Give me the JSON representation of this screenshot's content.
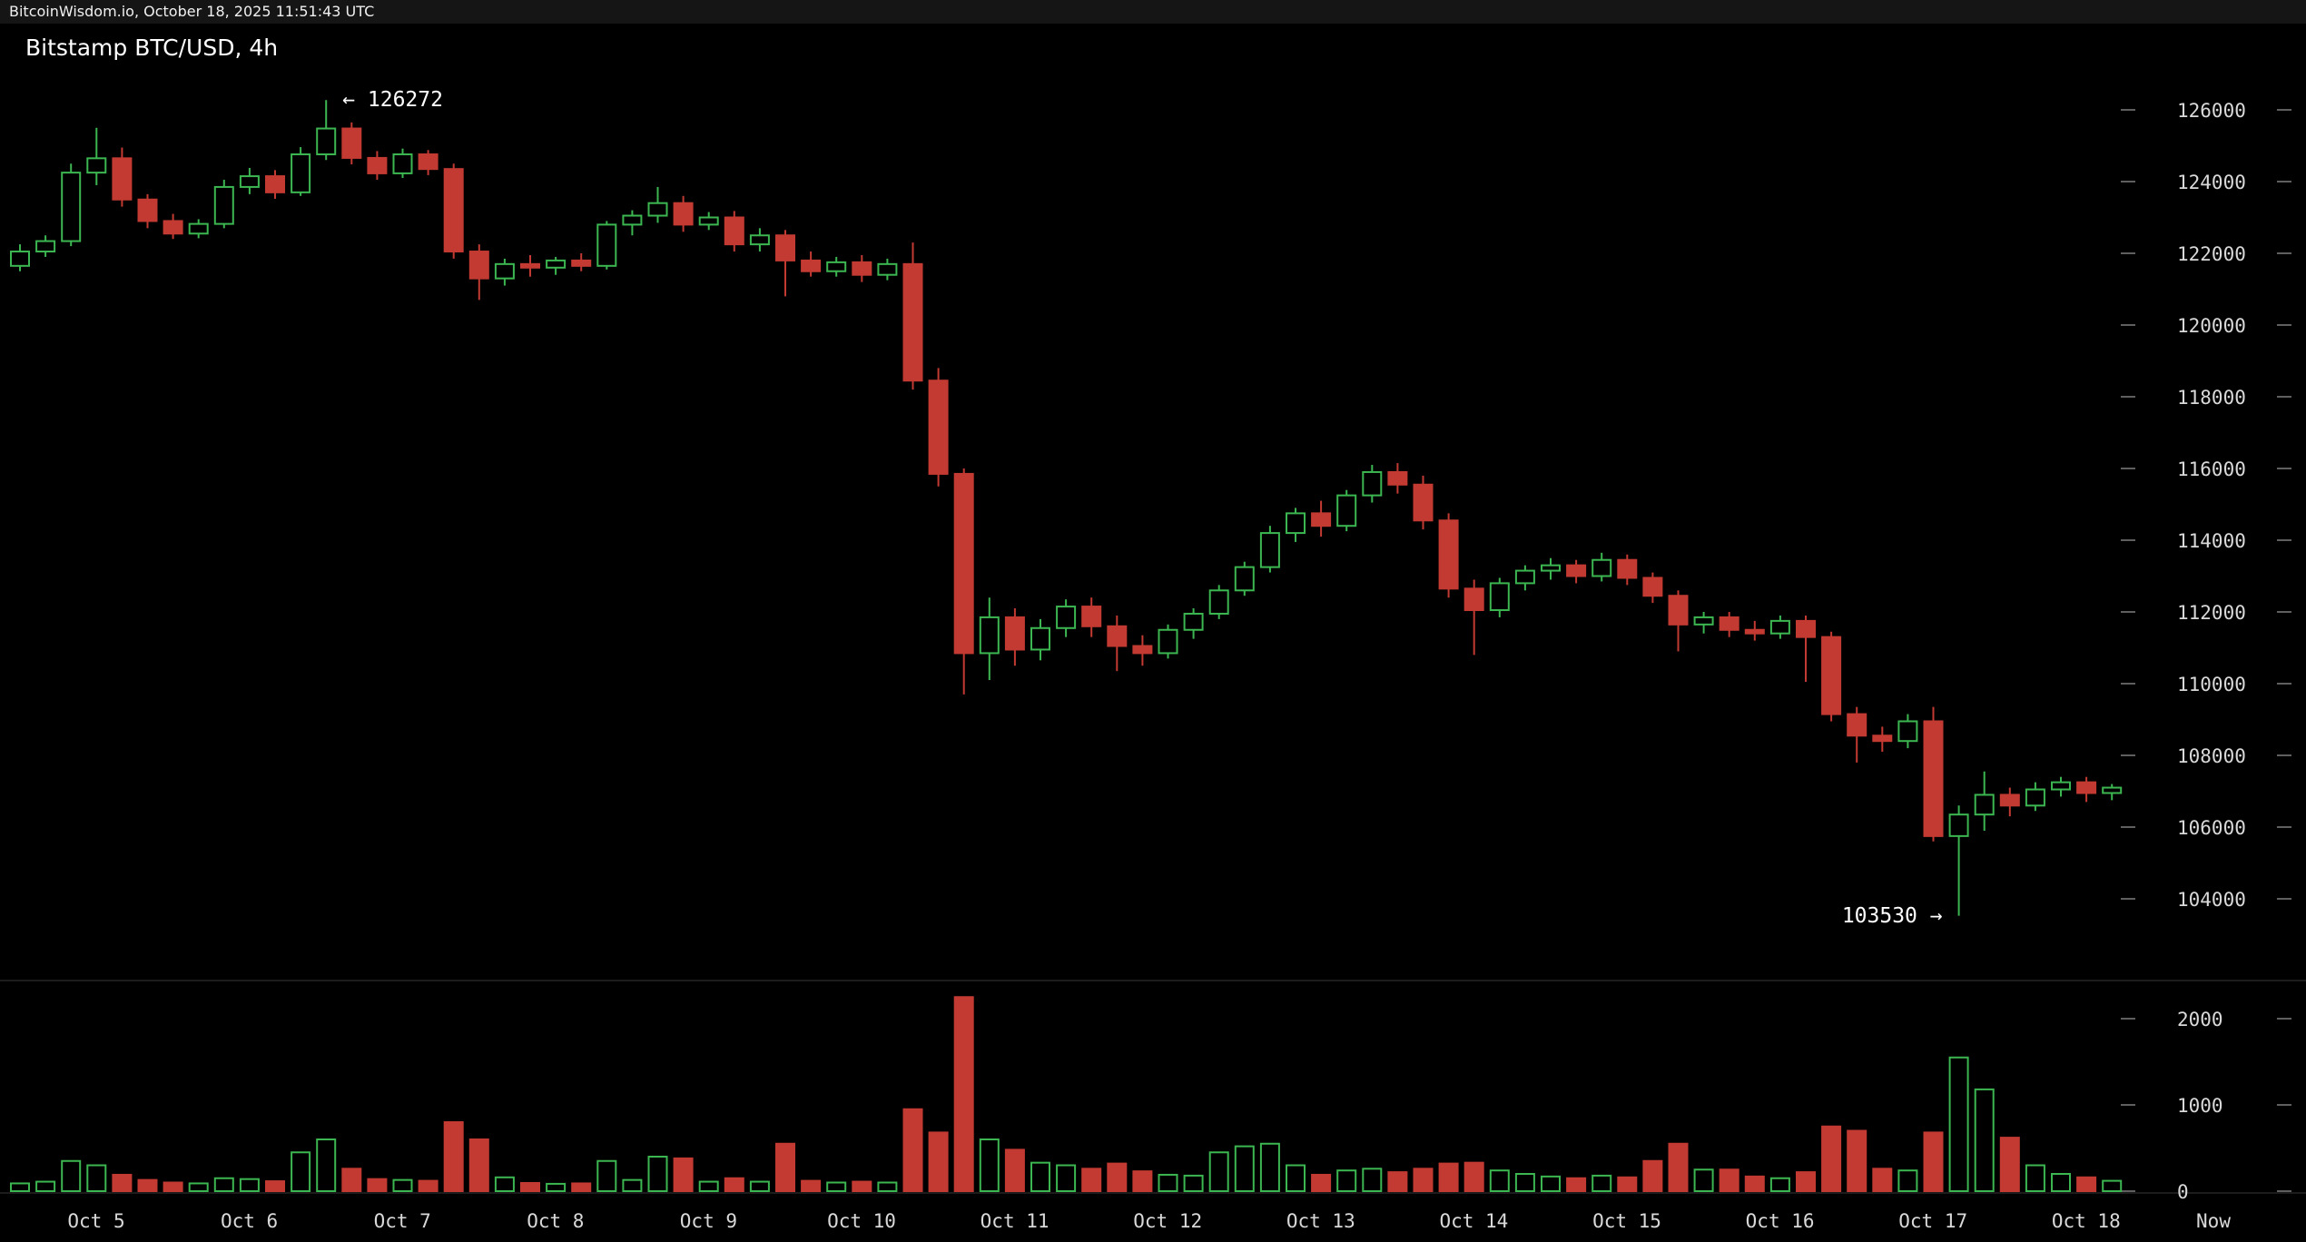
{
  "header": {
    "status_line": "BitcoinWisdom.io, October 18, 2025 11:51:43 UTC"
  },
  "chart": {
    "title": "Bitstamp BTC/USD, 4h",
    "high_annotation": "← 126272",
    "low_annotation": "103530 →"
  },
  "colors": {
    "up": "#3cb650",
    "down": "#c23a32",
    "background": "#000000",
    "axis_text": "#d9d9d9",
    "tick": "#5f5f5f",
    "title_text": "#ffffff",
    "topbar_bg": "#151515"
  },
  "chart_data": {
    "type": "candlestick",
    "title": "Bitstamp BTC/USD, 4h",
    "exchange": "Bitstamp",
    "pair": "BTC/USD",
    "interval": "4h",
    "session_high": 126272,
    "session_low": 103530,
    "y_axis": {
      "ticks": [
        126000,
        124000,
        122000,
        120000,
        118000,
        116000,
        114000,
        112000,
        110000,
        108000,
        106000,
        104000
      ]
    },
    "volume_axis": {
      "ticks": [
        2000,
        1000,
        0
      ]
    },
    "x_labels": [
      "Oct 5",
      "Oct 6",
      "Oct 7",
      "Oct 8",
      "Oct 9",
      "Oct 10",
      "Oct 11",
      "Oct 12",
      "Oct 13",
      "Oct 14",
      "Oct 15",
      "Oct 16",
      "Oct 17",
      "Oct 18"
    ],
    "now_label": "Now",
    "columns": [
      "open",
      "high",
      "low",
      "close",
      "volume"
    ],
    "candles": [
      [
        121650,
        122250,
        121500,
        122050,
        90
      ],
      [
        122050,
        122500,
        121900,
        122340,
        110
      ],
      [
        122340,
        124500,
        122200,
        124250,
        350
      ],
      [
        124250,
        125500,
        123900,
        124650,
        300
      ],
      [
        124650,
        124950,
        123300,
        123500,
        190
      ],
      [
        123500,
        123650,
        122700,
        122900,
        130
      ],
      [
        122900,
        123100,
        122400,
        122550,
        100
      ],
      [
        122550,
        122950,
        122420,
        122820,
        90
      ],
      [
        122820,
        124050,
        122700,
        123850,
        150
      ],
      [
        123850,
        124380,
        123650,
        124150,
        140
      ],
      [
        124150,
        124320,
        123520,
        123700,
        115
      ],
      [
        123700,
        124960,
        123600,
        124760,
        450
      ],
      [
        124760,
        126272,
        124600,
        125480,
        600
      ],
      [
        125480,
        125650,
        124480,
        124660,
        260
      ],
      [
        124660,
        124850,
        124050,
        124230,
        140
      ],
      [
        124230,
        124920,
        124100,
        124760,
        130
      ],
      [
        124760,
        124880,
        124180,
        124350,
        120
      ],
      [
        124350,
        124500,
        121850,
        122050,
        800
      ],
      [
        122050,
        122250,
        120700,
        121300,
        600
      ],
      [
        121300,
        121850,
        121100,
        121700,
        160
      ],
      [
        121700,
        121950,
        121350,
        121600,
        95
      ],
      [
        121600,
        121900,
        121400,
        121800,
        85
      ],
      [
        121800,
        122000,
        121500,
        121650,
        90
      ],
      [
        121650,
        122900,
        121550,
        122800,
        350
      ],
      [
        122800,
        123200,
        122500,
        123050,
        130
      ],
      [
        123050,
        123850,
        122850,
        123400,
        400
      ],
      [
        123400,
        123600,
        122600,
        122800,
        380
      ],
      [
        122800,
        123150,
        122650,
        123000,
        110
      ],
      [
        123000,
        123180,
        122050,
        122250,
        150
      ],
      [
        122250,
        122700,
        122050,
        122500,
        110
      ],
      [
        122500,
        122650,
        120800,
        121800,
        550
      ],
      [
        121800,
        122050,
        121350,
        121500,
        120
      ],
      [
        121500,
        121900,
        121350,
        121750,
        100
      ],
      [
        121750,
        121950,
        121200,
        121400,
        110
      ],
      [
        121400,
        121850,
        121250,
        121700,
        100
      ],
      [
        121700,
        122300,
        118200,
        118450,
        950
      ],
      [
        118450,
        118800,
        115500,
        115850,
        680
      ],
      [
        115850,
        116000,
        109700,
        110850,
        2250
      ],
      [
        110850,
        112400,
        110100,
        111850,
        600
      ],
      [
        111850,
        112100,
        110500,
        110950,
        480
      ],
      [
        110950,
        111800,
        110650,
        111550,
        330
      ],
      [
        111550,
        112350,
        111300,
        112150,
        300
      ],
      [
        112150,
        112400,
        111300,
        111600,
        260
      ],
      [
        111600,
        111900,
        110350,
        111050,
        320
      ],
      [
        111050,
        111350,
        110500,
        110850,
        230
      ],
      [
        110850,
        111650,
        110700,
        111500,
        190
      ],
      [
        111500,
        112100,
        111250,
        111950,
        180
      ],
      [
        111950,
        112750,
        111800,
        112600,
        450
      ],
      [
        112600,
        113400,
        112450,
        113250,
        520
      ],
      [
        113250,
        114400,
        113100,
        114200,
        550
      ],
      [
        114200,
        114900,
        113950,
        114750,
        300
      ],
      [
        114750,
        115100,
        114100,
        114400,
        190
      ],
      [
        114400,
        115400,
        114250,
        115250,
        240
      ],
      [
        115250,
        116100,
        115050,
        115900,
        260
      ],
      [
        115900,
        116150,
        115300,
        115550,
        220
      ],
      [
        115550,
        115800,
        114300,
        114550,
        260
      ],
      [
        114550,
        114750,
        112400,
        112650,
        320
      ],
      [
        112650,
        112900,
        110800,
        112050,
        330
      ],
      [
        112050,
        112950,
        111850,
        112800,
        240
      ],
      [
        112800,
        113300,
        112600,
        113150,
        200
      ],
      [
        113150,
        113500,
        112900,
        113300,
        170
      ],
      [
        113300,
        113450,
        112800,
        113000,
        150
      ],
      [
        113000,
        113650,
        112850,
        113450,
        180
      ],
      [
        113450,
        113600,
        112750,
        112950,
        160
      ],
      [
        112950,
        113100,
        112250,
        112450,
        350
      ],
      [
        112450,
        112600,
        110900,
        111650,
        550
      ],
      [
        111650,
        112000,
        111400,
        111850,
        250
      ],
      [
        111850,
        112000,
        111300,
        111500,
        250
      ],
      [
        111500,
        111750,
        111200,
        111400,
        170
      ],
      [
        111400,
        111900,
        111250,
        111750,
        150
      ],
      [
        111750,
        111900,
        110050,
        111300,
        220
      ],
      [
        111300,
        111450,
        108950,
        109150,
        750
      ],
      [
        109150,
        109350,
        107800,
        108550,
        700
      ],
      [
        108550,
        108800,
        108100,
        108400,
        260
      ],
      [
        108400,
        109150,
        108200,
        108950,
        240
      ],
      [
        108950,
        109350,
        105600,
        105750,
        680
      ],
      [
        105750,
        106600,
        103530,
        106350,
        1550
      ],
      [
        106350,
        107550,
        105900,
        106900,
        1180
      ],
      [
        106900,
        107100,
        106300,
        106600,
        620
      ],
      [
        106600,
        107250,
        106450,
        107050,
        300
      ],
      [
        107050,
        107400,
        106850,
        107250,
        200
      ],
      [
        107250,
        107400,
        106700,
        106950,
        160
      ],
      [
        106950,
        107200,
        106750,
        107100,
        120
      ]
    ]
  }
}
